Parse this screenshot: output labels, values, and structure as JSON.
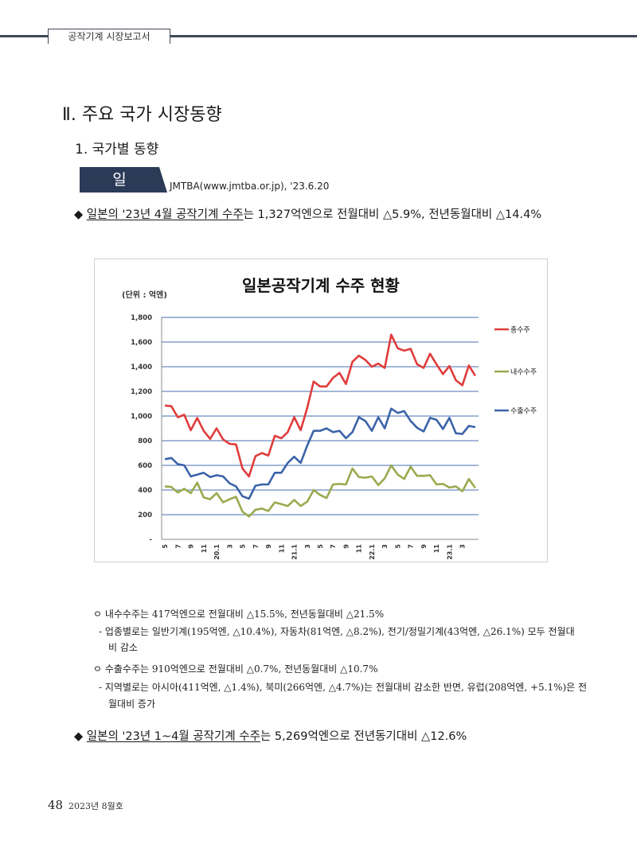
{
  "header": {
    "running_title": "공작기계 시장보고서"
  },
  "section": {
    "title": "Ⅱ. 주요 국가 시장동향",
    "subtitle": "1. 국가별 동향"
  },
  "country": {
    "label": "일 본",
    "source": "JMTBA(www.jmtba.or.jp),  '23.6.20"
  },
  "bullet1": {
    "mark": "◆",
    "underlined": "일본의 '23년 4월 공작기계 수주",
    "rest": "는 1,327억엔으로 전월대비 △5.9%, 전년동월대비 △14.4%"
  },
  "chart_data": {
    "type": "line",
    "title": "일본공작기계 수주 현황",
    "unit_label": "(단위 : 억엔)",
    "ylim": [
      0,
      1800
    ],
    "y_ticks": [
      0,
      200,
      400,
      600,
      800,
      1000,
      1200,
      1400,
      1600,
      1800
    ],
    "y_tick_labels": [
      "-",
      "200",
      "400",
      "600",
      "800",
      "1,000",
      "1,200",
      "1,400",
      "1,600",
      "1,800"
    ],
    "grid": true,
    "legend_position": "right",
    "x_tick_labels": [
      "5",
      "7",
      "9",
      "11",
      "20.1",
      "3",
      "5",
      "7",
      "9",
      "11",
      "21.1",
      "3",
      "5",
      "7",
      "9",
      "11",
      "22.1",
      "3",
      "5",
      "7",
      "9",
      "11",
      "23.1",
      "3"
    ],
    "series": [
      {
        "name": "총수주",
        "color": "#e03c3c",
        "values": [
          1085,
          1080,
          990,
          1010,
          885,
          985,
          880,
          815,
          900,
          810,
          775,
          770,
          575,
          510,
          675,
          700,
          680,
          840,
          820,
          870,
          990,
          885,
          1065,
          1280,
          1240,
          1240,
          1310,
          1350,
          1260,
          1440,
          1490,
          1455,
          1400,
          1425,
          1390,
          1660,
          1550,
          1530,
          1545,
          1420,
          1390,
          1505,
          1420,
          1340,
          1405,
          1290,
          1250,
          1410,
          1327
        ]
      },
      {
        "name": "내수수주",
        "color": "#9aaa4f",
        "values": [
          430,
          425,
          380,
          410,
          375,
          460,
          340,
          325,
          375,
          300,
          325,
          345,
          225,
          185,
          240,
          250,
          230,
          300,
          285,
          270,
          320,
          270,
          305,
          400,
          360,
          335,
          445,
          450,
          445,
          575,
          505,
          500,
          510,
          440,
          495,
          600,
          525,
          490,
          590,
          515,
          515,
          520,
          445,
          450,
          420,
          430,
          390,
          490,
          417
        ]
      },
      {
        "name": "수출수주",
        "color": "#3b63a8",
        "values": [
          650,
          660,
          610,
          600,
          510,
          525,
          540,
          505,
          520,
          510,
          455,
          430,
          350,
          330,
          435,
          445,
          445,
          540,
          540,
          620,
          670,
          620,
          760,
          880,
          880,
          900,
          870,
          880,
          820,
          870,
          990,
          960,
          880,
          990,
          900,
          1060,
          1025,
          1040,
          960,
          905,
          875,
          985,
          970,
          895,
          985,
          860,
          855,
          920,
          910
        ]
      }
    ]
  },
  "domestic": {
    "main": "ㅇ 내수수주는 417억엔으로 전월대비 △15.5%, 전년동월대비 △21.5%",
    "sub_line1": "- 업종별로는 일반기계(195억엔, △10.4%), 자동차(81억엔, △8.2%), 전기/정밀기계(43억엔, △26.1%) 모두 전월대",
    "sub_line2": "비 감소"
  },
  "export": {
    "main": "ㅇ 수출수주는 910억엔으로 전월대비 △0.7%, 전년동월대비 △10.7%",
    "sub_line1": "- 지역별로는 아시아(411억엔, △1.4%), 북미(266억엔, △4.7%)는 전월대비 감소한 반면, 유럽(208억엔, +5.1%)은 전",
    "sub_line2": "월대비 증가"
  },
  "bullet2": {
    "mark": "◆",
    "underlined": "일본의 '23년 1~4월 공작기계 수주",
    "rest": "는 5,269억엔으로 전년동기대비 △12.6%"
  },
  "footer": {
    "page_number": "48",
    "issue": "2023년 8월호"
  }
}
